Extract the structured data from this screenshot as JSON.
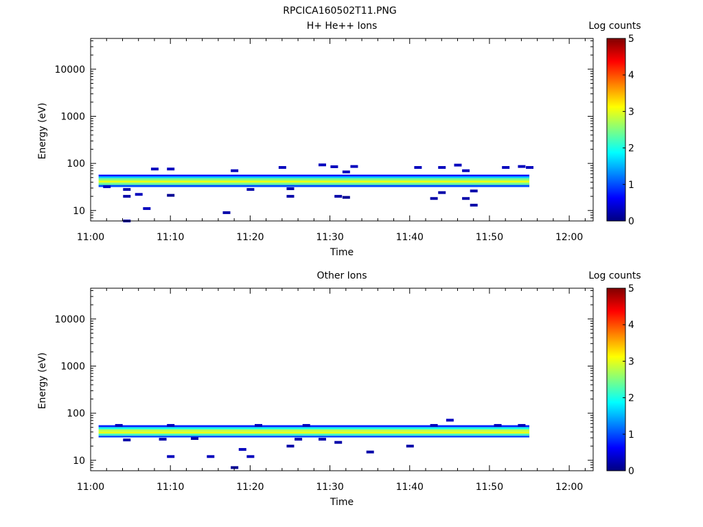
{
  "figure_title": "RPCICA160502T11.PNG",
  "colorbar": {
    "label": "Log counts",
    "ticks": [
      "0",
      "1",
      "2",
      "3",
      "4",
      "5"
    ],
    "min": 0,
    "max": 5,
    "colormap": [
      "#000080",
      "#0000ff",
      "#0080ff",
      "#00ffff",
      "#80ff80",
      "#ffff00",
      "#ff8000",
      "#ff0000",
      "#800000"
    ]
  },
  "chart_data": [
    {
      "type": "heatmap",
      "title": "H+ He++ Ions",
      "xlabel": "Time",
      "ylabel": "Energy (eV)",
      "x_ticks": [
        "11:00",
        "11:10",
        "11:20",
        "11:30",
        "11:40",
        "11:50",
        "12:00"
      ],
      "xlim_minutes": [
        0,
        63
      ],
      "y_ticks": [
        "10",
        "100",
        "1000",
        "10000"
      ],
      "ylim": [
        6,
        45000
      ],
      "y_scale": "log",
      "band": {
        "time_start": "11:01",
        "time_end": "11:55",
        "rows": [
          {
            "energy": 33,
            "log_counts": 1.0
          },
          {
            "energy": 37,
            "log_counts": 2.4
          },
          {
            "energy": 41,
            "log_counts": 3.0
          },
          {
            "energy": 46,
            "log_counts": 2.5
          },
          {
            "energy": 51,
            "log_counts": 1.6
          },
          {
            "energy": 55,
            "log_counts": 0.7
          }
        ]
      },
      "sparse_points": [
        {
          "time": "11:02",
          "energy": 32,
          "log_counts": 0.3
        },
        {
          "time": "11:04.5",
          "energy": 20,
          "log_counts": 0.2
        },
        {
          "time": "11:04.5",
          "energy": 28,
          "log_counts": 0.2
        },
        {
          "time": "11:04.5",
          "energy": 6,
          "log_counts": 0.2
        },
        {
          "time": "11:06",
          "energy": 22,
          "log_counts": 0.3
        },
        {
          "time": "11:07",
          "energy": 11,
          "log_counts": 0.3
        },
        {
          "time": "11:08",
          "energy": 76,
          "log_counts": 0.3
        },
        {
          "time": "11:10",
          "energy": 76,
          "log_counts": 0.3
        },
        {
          "time": "11:10",
          "energy": 21,
          "log_counts": 0.1
        },
        {
          "time": "11:17",
          "energy": 9,
          "log_counts": 0.2
        },
        {
          "time": "11:18",
          "energy": 70,
          "log_counts": 0.3
        },
        {
          "time": "11:20",
          "energy": 28,
          "log_counts": 0.2
        },
        {
          "time": "11:24",
          "energy": 82,
          "log_counts": 0.3
        },
        {
          "time": "11:25",
          "energy": 20,
          "log_counts": 0.2
        },
        {
          "time": "11:25",
          "energy": 29,
          "log_counts": 0.2
        },
        {
          "time": "11:29",
          "energy": 93,
          "log_counts": 0.3
        },
        {
          "time": "11:30.5",
          "energy": 85,
          "log_counts": 0.3
        },
        {
          "time": "11:31",
          "energy": 20,
          "log_counts": 0.2
        },
        {
          "time": "11:32",
          "energy": 19,
          "log_counts": 0.1
        },
        {
          "time": "11:32",
          "energy": 66,
          "log_counts": 0.3
        },
        {
          "time": "11:33",
          "energy": 86,
          "log_counts": 0.3
        },
        {
          "time": "11:41",
          "energy": 82,
          "log_counts": 0.3
        },
        {
          "time": "11:43",
          "energy": 18,
          "log_counts": 0.2
        },
        {
          "time": "11:44",
          "energy": 24,
          "log_counts": 0.2
        },
        {
          "time": "11:44",
          "energy": 82,
          "log_counts": 0.3
        },
        {
          "time": "11:46",
          "energy": 92,
          "log_counts": 0.3
        },
        {
          "time": "11:47",
          "energy": 70,
          "log_counts": 0.3
        },
        {
          "time": "11:47",
          "energy": 18,
          "log_counts": 0.2
        },
        {
          "time": "11:48",
          "energy": 13,
          "log_counts": 0.2
        },
        {
          "time": "11:48",
          "energy": 26,
          "log_counts": 0.2
        },
        {
          "time": "11:52",
          "energy": 82,
          "log_counts": 0.3
        },
        {
          "time": "11:54",
          "energy": 86,
          "log_counts": 0.3
        },
        {
          "time": "11:55",
          "energy": 82,
          "log_counts": 0.3
        }
      ]
    },
    {
      "type": "heatmap",
      "title": "Other Ions",
      "xlabel": "Time",
      "ylabel": "Energy (eV)",
      "x_ticks": [
        "11:00",
        "11:10",
        "11:20",
        "11:30",
        "11:40",
        "11:50",
        "12:00"
      ],
      "xlim_minutes": [
        0,
        63
      ],
      "y_ticks": [
        "10",
        "100",
        "1000",
        "10000"
      ],
      "ylim": [
        6,
        45000
      ],
      "y_scale": "log",
      "band": {
        "time_start": "11:01",
        "time_end": "11:55",
        "rows": [
          {
            "energy": 32,
            "log_counts": 1.0
          },
          {
            "energy": 35,
            "log_counts": 2.2
          },
          {
            "energy": 39,
            "log_counts": 3.0
          },
          {
            "energy": 43,
            "log_counts": 2.8
          },
          {
            "energy": 48,
            "log_counts": 2.0
          },
          {
            "energy": 53,
            "log_counts": 0.8
          }
        ]
      },
      "sparse_points": [
        {
          "time": "11:03.5",
          "energy": 55,
          "log_counts": 0.3
        },
        {
          "time": "11:04.5",
          "energy": 27,
          "log_counts": 0.2
        },
        {
          "time": "11:09",
          "energy": 28,
          "log_counts": 0.2
        },
        {
          "time": "11:10",
          "energy": 12,
          "log_counts": 0.3
        },
        {
          "time": "11:10",
          "energy": 55,
          "log_counts": 0.3
        },
        {
          "time": "11:13",
          "energy": 29,
          "log_counts": 0.2
        },
        {
          "time": "11:15",
          "energy": 12,
          "log_counts": 0.3
        },
        {
          "time": "11:18",
          "energy": 7,
          "log_counts": 0.1
        },
        {
          "time": "11:19",
          "energy": 17,
          "log_counts": 0.3
        },
        {
          "time": "11:20",
          "energy": 12,
          "log_counts": 0.3
        },
        {
          "time": "11:21",
          "energy": 55,
          "log_counts": 0.3
        },
        {
          "time": "11:25",
          "energy": 20,
          "log_counts": 0.2
        },
        {
          "time": "11:26",
          "energy": 28,
          "log_counts": 0.2
        },
        {
          "time": "11:27",
          "energy": 55,
          "log_counts": 0.3
        },
        {
          "time": "11:29",
          "energy": 28,
          "log_counts": 0.2
        },
        {
          "time": "11:31",
          "energy": 24,
          "log_counts": 0.2
        },
        {
          "time": "11:35",
          "energy": 15,
          "log_counts": 0.2
        },
        {
          "time": "11:40",
          "energy": 20,
          "log_counts": 0.2
        },
        {
          "time": "11:45",
          "energy": 71,
          "log_counts": 0.3
        },
        {
          "time": "11:43",
          "energy": 55,
          "log_counts": 0.3
        },
        {
          "time": "11:51",
          "energy": 55,
          "log_counts": 0.3
        },
        {
          "time": "11:54",
          "energy": 55,
          "log_counts": 0.3
        }
      ]
    }
  ]
}
